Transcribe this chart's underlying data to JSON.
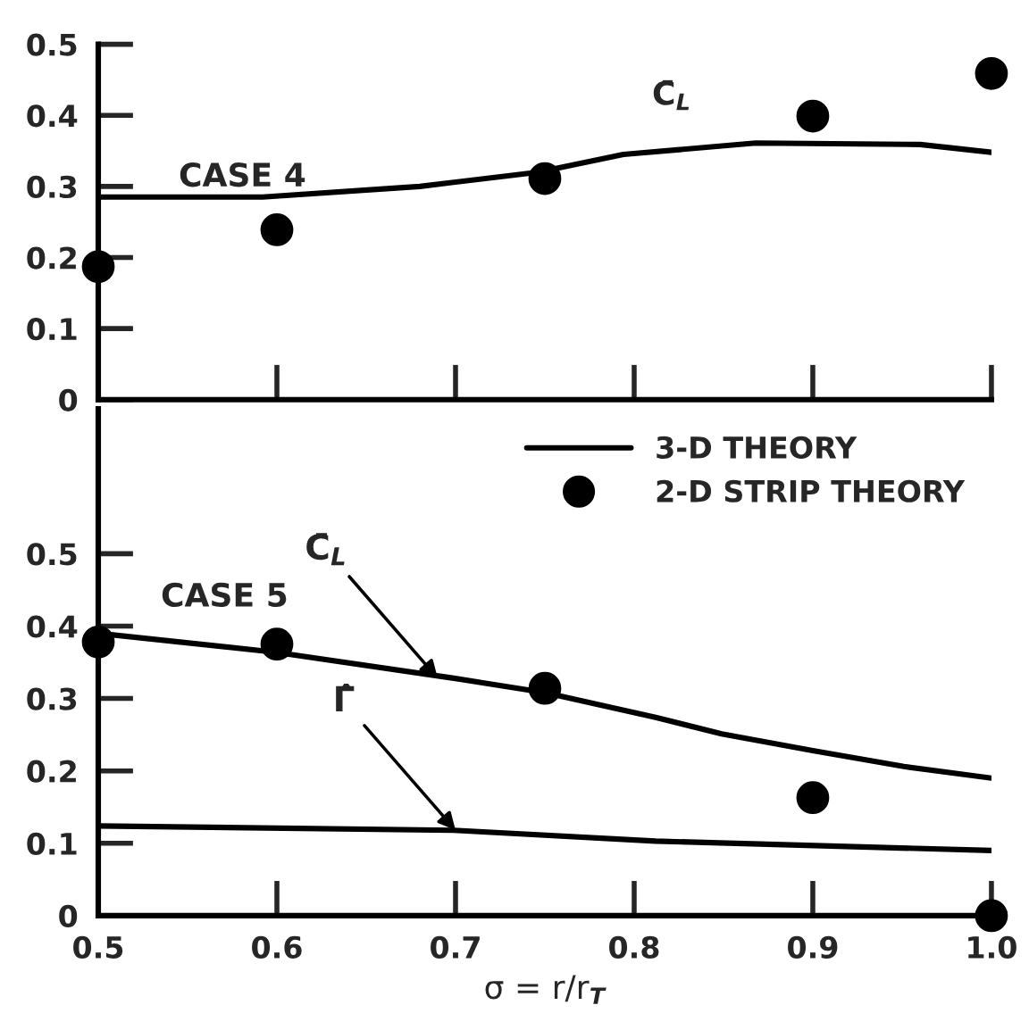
{
  "chart_data": [
    {
      "type": "line",
      "xlim": [
        0.5,
        1.0
      ],
      "xticks": [
        {
          "value": 0.5,
          "label": null
        },
        {
          "value": 0.6,
          "label": null
        },
        {
          "value": 0.7,
          "label": null
        },
        {
          "value": 0.8,
          "label": null
        },
        {
          "value": 0.9,
          "label": null
        },
        {
          "value": 1.0,
          "label": null
        }
      ],
      "ylim": [
        0,
        0.5
      ],
      "yticks": [
        0,
        0.1,
        0.2,
        0.3,
        0.4,
        0.5
      ],
      "tick_labels": "y",
      "grid": false,
      "legend": false,
      "annotations": [
        "CASE 4",
        "C̄$_{L}$"
      ],
      "series": [
        {
          "color": "#000000",
          "line_style": "solid",
          "marker": "none",
          "x": [
            0.5,
            0.592,
            0.68,
            0.746,
            0.794,
            0.868,
            0.96,
            1.0
          ],
          "values": [
            0.285,
            0.285,
            0.3,
            0.32,
            0.345,
            0.361,
            0.359,
            0.348
          ]
        },
        {
          "type": "scatter",
          "color": "#000000",
          "marker": "circle",
          "x": [
            0.5,
            0.6,
            0.75,
            0.9,
            1.0
          ],
          "values": [
            0.187,
            0.239,
            0.311,
            0.399,
            0.459
          ]
        }
      ]
    },
    {
      "type": "line",
      "xlabel": "σ = r/r$_{T}$",
      "xlim": [
        0.5,
        1.0
      ],
      "xticks": [
        0.5,
        0.6,
        0.7,
        0.8,
        0.9,
        {
          "value": 1.0,
          "label": "1.0"
        }
      ],
      "ylim": [
        0,
        0.7
      ],
      "yticks": [
        0,
        0.1,
        0.2,
        0.3,
        0.4,
        0.5
      ],
      "grid": false,
      "legend": "top right",
      "annotations": [
        "CASE 5",
        {
          "text": "C̄$_{L}$",
          "x": 0.69,
          "y": 0.328
        },
        {
          "text": "Γ̂",
          "x": 0.7,
          "y": 0.118
        }
      ],
      "series": [
        {
          "name": "3-D THEORY",
          "color": "#000000",
          "line_style": "solid",
          "marker": "none",
          "x": [
            0.5,
            0.599,
            0.699,
            0.75,
            0.812,
            0.849,
            0.9,
            0.951,
            1.0
          ],
          "values": [
            0.39,
            0.364,
            0.328,
            0.308,
            0.274,
            0.251,
            0.228,
            0.206,
            0.19
          ]
        },
        {
          "color": "#000000",
          "line_style": "solid",
          "marker": "none",
          "x": [
            0.5,
            0.699,
            0.812,
            1.0
          ],
          "values": [
            0.124,
            0.118,
            0.103,
            0.09
          ]
        },
        {
          "type": "scatter",
          "name": "2-D STRIP THEORY",
          "color": "#000000",
          "marker": "circle",
          "x": [
            0.5,
            0.6,
            0.75,
            0.9,
            1.0
          ],
          "values": [
            0.378,
            0.375,
            0.314,
            0.163,
            0.0
          ]
        }
      ]
    }
  ]
}
